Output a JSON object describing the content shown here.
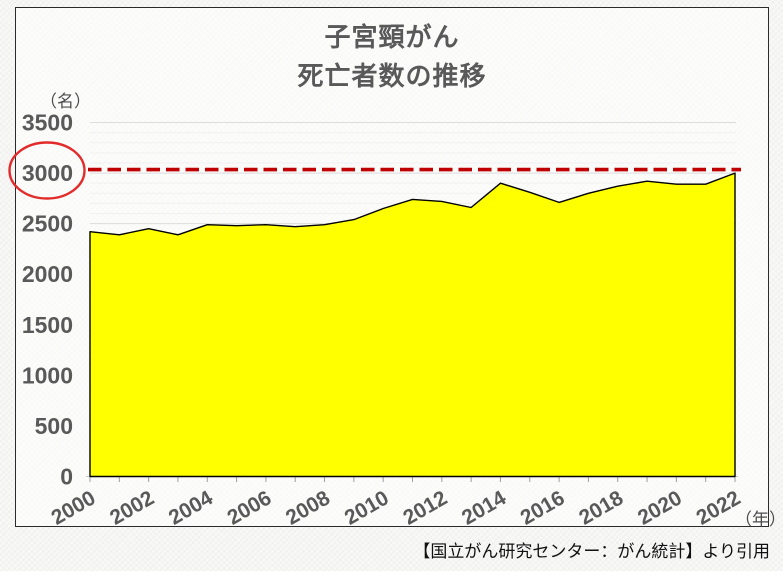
{
  "title": {
    "line1": "子宮頸がん",
    "line2": "死亡者数の推移"
  },
  "axis_units": {
    "y": "（名）",
    "x": "（年）"
  },
  "footer": {
    "source_citation": "【国立がん研究センター：がん統計】より引用"
  },
  "colors": {
    "area_fill": "#ffff00",
    "area_stroke": "#000000",
    "reference_line": "#c00000",
    "highlight_ellipse": "#e22b2b",
    "axis_text": "#595959",
    "major_gridline": "#dcdcdc",
    "minor_gridline": "#f1f1f1",
    "axis_line": "#c8c8c8",
    "tick_mark": "#9e9e9e"
  },
  "chart_data": {
    "type": "area",
    "title": "子宮頸がん 死亡者数の推移",
    "series_name": "死亡者数",
    "x": [
      2000,
      2001,
      2002,
      2003,
      2004,
      2005,
      2006,
      2007,
      2008,
      2009,
      2010,
      2011,
      2012,
      2013,
      2014,
      2015,
      2016,
      2017,
      2018,
      2019,
      2020,
      2021,
      2022
    ],
    "values": [
      2420,
      2390,
      2450,
      2390,
      2490,
      2480,
      2490,
      2470,
      2490,
      2540,
      2650,
      2740,
      2720,
      2660,
      2900,
      2810,
      2710,
      2800,
      2870,
      2920,
      2890,
      2890,
      3000
    ],
    "xlabel": "（年）",
    "ylabel": "（名）",
    "ylim": [
      0,
      3500
    ],
    "y_ticks": [
      0,
      500,
      1000,
      1500,
      2000,
      2500,
      3000,
      3500
    ],
    "x_tick_labels": [
      "2000",
      "2002",
      "2004",
      "2006",
      "2008",
      "2010",
      "2012",
      "2014",
      "2016",
      "2018",
      "2020",
      "2022"
    ],
    "grid": "horizontal major every 500, faint minor every 100, no vertical gridlines",
    "legend": "none",
    "reference_line": {
      "value": 3000,
      "style": "dashed",
      "color": "#c00000"
    },
    "annotation": {
      "shape": "ellipse",
      "target": "y-axis label 3000",
      "color": "#e22b2b"
    }
  }
}
